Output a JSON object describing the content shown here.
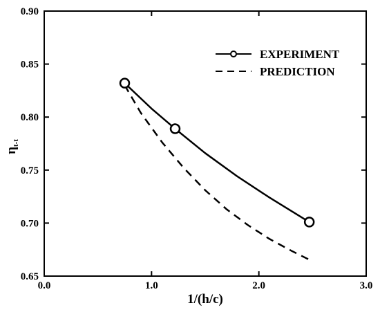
{
  "chart_data": {
    "type": "line",
    "title": "",
    "xlabel": "1/(h/c)",
    "ylabel_main": "η",
    "ylabel_sub": "t-t",
    "xlim": [
      0.0,
      3.0
    ],
    "ylim": [
      0.65,
      0.9
    ],
    "x_ticks": [
      "0.0",
      "1.0",
      "2.0",
      "3.0"
    ],
    "y_ticks": [
      "0.65",
      "0.70",
      "0.75",
      "0.80",
      "0.85",
      "0.90"
    ],
    "x_tick_values": [
      0.0,
      1.0,
      2.0,
      3.0
    ],
    "y_tick_values": [
      0.65,
      0.7,
      0.75,
      0.8,
      0.85,
      0.9
    ],
    "grid": false,
    "legend_position": "top-right",
    "series": [
      {
        "name": "EXPERIMENT",
        "style": "solid-with-circle-markers",
        "color": "#000000",
        "x": [
          0.75,
          1.22,
          2.47
        ],
        "y": [
          0.832,
          0.789,
          0.701
        ],
        "curve_x": [
          0.75,
          1.0,
          1.22,
          1.5,
          1.8,
          2.1,
          2.47
        ],
        "curve_y": [
          0.832,
          0.808,
          0.789,
          0.766,
          0.744,
          0.724,
          0.701
        ]
      },
      {
        "name": "PREDICTION",
        "style": "dashed",
        "color": "#000000",
        "x": [
          0.75,
          0.9,
          1.1,
          1.3,
          1.5,
          1.7,
          1.9,
          2.1,
          2.3,
          2.5
        ],
        "y": [
          0.83,
          0.804,
          0.776,
          0.752,
          0.731,
          0.713,
          0.698,
          0.685,
          0.674,
          0.664
        ]
      }
    ]
  }
}
